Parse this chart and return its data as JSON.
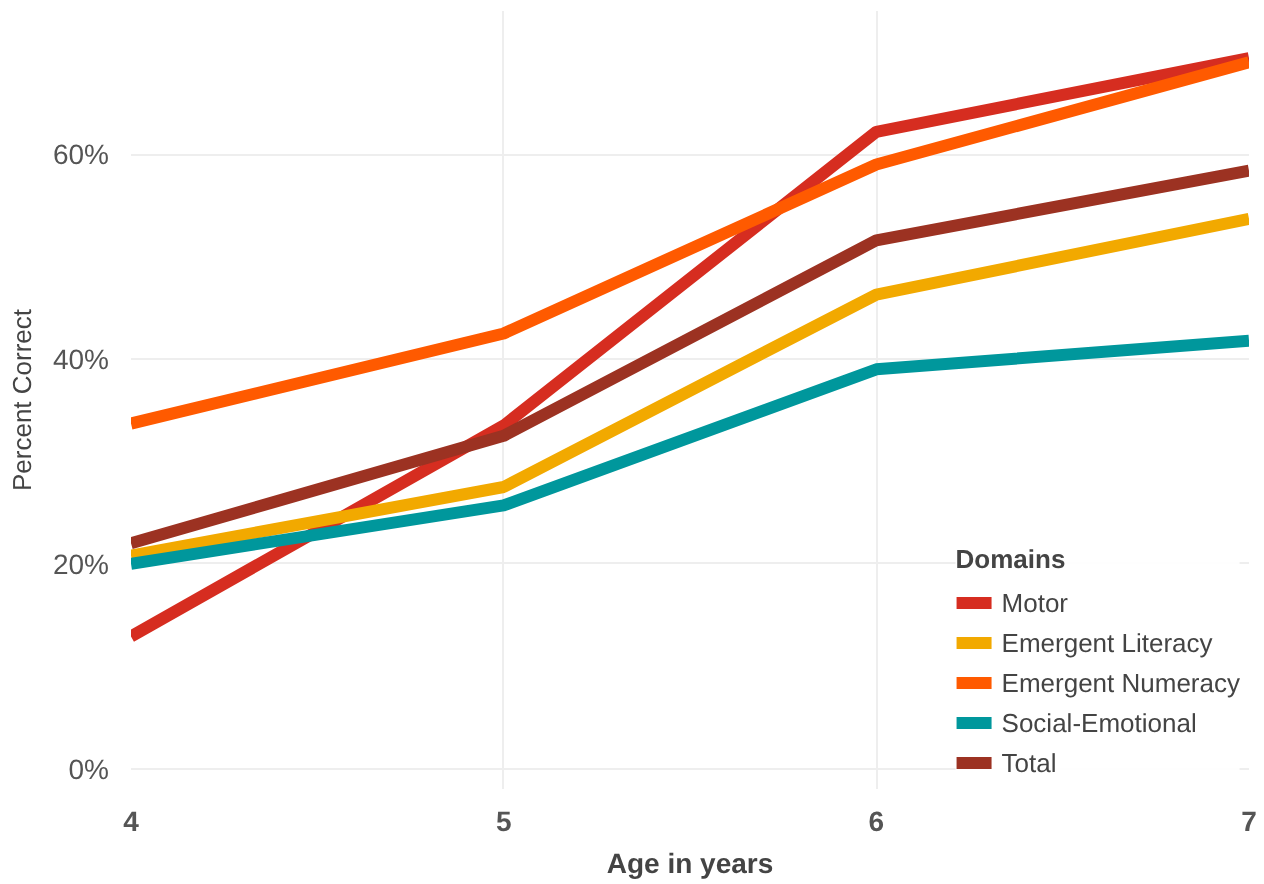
{
  "chart_data": {
    "type": "line",
    "xlabel": "Age in years",
    "ylabel": "Percent Correct",
    "legend_title": "Domains",
    "legend": "bottom right",
    "grid": true,
    "marker": "none",
    "line_style": "solid",
    "x": [
      4,
      5,
      6,
      7
    ],
    "xlim": [
      4,
      7
    ],
    "xticks": [
      4,
      5,
      6,
      7
    ],
    "ylim": [
      -2,
      74
    ],
    "yticks": [
      {
        "value": 0,
        "label": "0%"
      },
      {
        "value": 20,
        "label": "20%"
      },
      {
        "value": 40,
        "label": "40%"
      },
      {
        "value": 60,
        "label": "60%"
      }
    ],
    "series": [
      {
        "name": "Motor",
        "color": "#d62d20",
        "values": [
          12.9,
          33.5,
          62.2,
          69.4
        ]
      },
      {
        "name": "Emergent Literacy",
        "color": "#f2a900",
        "values": [
          20.8,
          27.5,
          46.3,
          53.7
        ]
      },
      {
        "name": "Emergent Numeracy",
        "color": "#ff5a00",
        "values": [
          33.7,
          42.5,
          59,
          69
        ]
      },
      {
        "name": "Social-Emotional",
        "color": "#00979c",
        "values": [
          20,
          25.7,
          39,
          41.8
        ]
      },
      {
        "name": "Total",
        "color": "#9c3222",
        "values": [
          22,
          32.5,
          51.6,
          58.4
        ]
      }
    ]
  }
}
